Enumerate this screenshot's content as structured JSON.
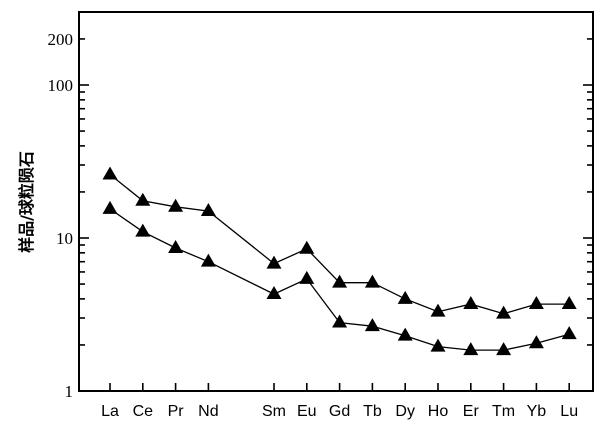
{
  "chart_data": {
    "type": "line",
    "scale": "log",
    "ylabel": "样品/球粒陨石",
    "xlabel": "",
    "title": "",
    "ylim": [
      1,
      300
    ],
    "y_ticks": [
      1,
      10,
      100,
      200
    ],
    "y_tick_labels": [
      "1",
      "10",
      "100",
      "200"
    ],
    "categories": [
      "La",
      "Ce",
      "Pr",
      "Nd",
      "Sm",
      "Eu",
      "Gd",
      "Tb",
      "Dy",
      "Ho",
      "Er",
      "Tm",
      "Yb",
      "Lu"
    ],
    "category_positions": [
      1,
      2,
      3,
      4,
      6,
      7,
      8,
      9,
      10,
      11,
      12,
      13,
      14,
      15
    ],
    "marker": "triangle",
    "series": [
      {
        "values": [
          26,
          17.5,
          16,
          15,
          6.8,
          8.5,
          5.1,
          5.1,
          4.0,
          3.3,
          3.7,
          3.2,
          3.7,
          3.7
        ]
      },
      {
        "values": [
          15.5,
          11,
          8.6,
          7.0,
          4.3,
          5.4,
          2.8,
          2.65,
          2.3,
          1.95,
          1.85,
          1.85,
          2.05,
          2.35
        ]
      }
    ],
    "grid": false,
    "legend": "none"
  }
}
